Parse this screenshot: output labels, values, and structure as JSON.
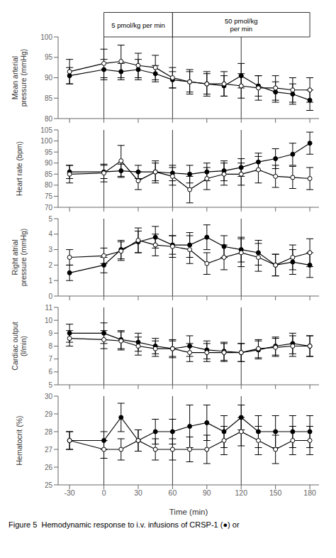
{
  "chart_data": [
    {
      "type": "line",
      "y_label": "Mean arterial\npressure (mmHg)",
      "x": [
        -30,
        0,
        15,
        30,
        45,
        60,
        75,
        90,
        105,
        120,
        135,
        150,
        165,
        180
      ],
      "series": [
        {
          "color": "#000000",
          "marker": "filled_circle",
          "values": [
            90.5,
            92.0,
            91.5,
            92.0,
            91.0,
            89.5,
            89.0,
            88.5,
            88.0,
            90.5,
            88.0,
            86.5,
            86.0,
            84.5
          ],
          "errors": [
            2.0,
            2.5,
            2.0,
            2.5,
            2.0,
            2.0,
            2.5,
            2.5,
            2.5,
            3.0,
            2.5,
            2.5,
            2.5,
            2.5
          ]
        },
        {
          "color": "#000000",
          "marker": "open_circle",
          "values": [
            91.5,
            93.5,
            94.0,
            93.0,
            92.5,
            90.0,
            89.0,
            88.5,
            88.5,
            88.0,
            87.5,
            87.5,
            87.0,
            87.0
          ],
          "errors": [
            3.0,
            3.5,
            4.0,
            3.0,
            3.0,
            2.5,
            3.0,
            3.0,
            3.0,
            3.0,
            3.0,
            3.0,
            3.0,
            3.0
          ]
        }
      ],
      "xlim": [
        -40,
        188
      ],
      "xticks": [
        -30,
        0,
        30,
        60,
        90,
        120,
        150,
        180
      ],
      "ylim": [
        80,
        100
      ],
      "yticks": [
        80,
        85,
        90,
        95,
        100
      ],
      "tick_labels": "y",
      "grid": false,
      "annotations": [
        {
          "kind": "vline",
          "x": 0
        },
        {
          "kind": "vline",
          "x": 60
        },
        {
          "kind": "vline",
          "x": 120
        },
        {
          "kind": "box",
          "text": "5 pmol/kg per min",
          "x_range": [
            0,
            60
          ]
        },
        {
          "kind": "box",
          "text": "50 pmol/kg\nper min",
          "x_range": [
            60,
            180
          ]
        }
      ]
    },
    {
      "type": "line",
      "y_label": "Heart rate (bpm)",
      "x": [
        -30,
        0,
        15,
        30,
        45,
        60,
        75,
        90,
        105,
        120,
        135,
        150,
        165,
        180
      ],
      "series": [
        {
          "color": "#000000",
          "marker": "filled_circle",
          "values": [
            86.0,
            86.0,
            86.5,
            86.0,
            86.0,
            85.5,
            85.0,
            86.0,
            86.5,
            88.0,
            90.5,
            92.0,
            94.0,
            99.0
          ],
          "errors": [
            3.0,
            3.0,
            3.0,
            3.0,
            4.0,
            3.5,
            4.0,
            4.0,
            4.5,
            4.0,
            4.0,
            4.5,
            5.0,
            5.0
          ]
        },
        {
          "color": "#000000",
          "marker": "open_circle",
          "values": [
            85.0,
            85.5,
            91.0,
            82.0,
            86.0,
            84.0,
            78.0,
            83.0,
            85.0,
            85.0,
            87.0,
            84.0,
            83.5,
            83.0
          ],
          "errors": [
            4.0,
            4.0,
            7.0,
            4.0,
            5.0,
            4.0,
            6.0,
            5.0,
            5.0,
            5.0,
            6.0,
            5.0,
            5.0,
            5.0
          ]
        }
      ],
      "xlim": [
        -40,
        188
      ],
      "xticks": [
        -30,
        0,
        30,
        60,
        90,
        120,
        150,
        180
      ],
      "ylim": [
        70,
        105
      ],
      "yticks": [
        70,
        75,
        80,
        85,
        90,
        95,
        100,
        105
      ],
      "tick_labels": "y",
      "grid": false,
      "annotations": [
        {
          "kind": "vline",
          "x": 0
        },
        {
          "kind": "vline",
          "x": 60
        },
        {
          "kind": "vline",
          "x": 120
        }
      ]
    },
    {
      "type": "line",
      "y_label": "Right atrial\npressure (mmHg)",
      "x": [
        -30,
        0,
        15,
        30,
        45,
        60,
        75,
        90,
        105,
        120,
        135,
        150,
        165,
        180
      ],
      "series": [
        {
          "color": "#000000",
          "marker": "filled_circle",
          "values": [
            1.5,
            2.0,
            3.0,
            3.5,
            3.8,
            3.3,
            3.3,
            3.8,
            3.2,
            3.0,
            2.8,
            2.0,
            2.2,
            2.0
          ],
          "errors": [
            0.5,
            0.5,
            0.6,
            0.7,
            0.7,
            0.6,
            0.8,
            0.8,
            0.7,
            0.8,
            0.8,
            0.7,
            0.8,
            0.8
          ]
        },
        {
          "color": "#000000",
          "marker": "open_circle",
          "values": [
            2.5,
            2.6,
            2.9,
            3.6,
            3.3,
            3.2,
            3.0,
            2.1,
            2.5,
            2.8,
            2.5,
            2.0,
            2.5,
            2.8
          ],
          "errors": [
            0.5,
            0.5,
            0.6,
            0.8,
            0.7,
            0.7,
            0.9,
            0.7,
            0.8,
            0.9,
            0.9,
            0.7,
            0.8,
            0.9
          ]
        }
      ],
      "xlim": [
        -40,
        188
      ],
      "xticks": [
        -30,
        0,
        30,
        60,
        90,
        120,
        150,
        180
      ],
      "ylim": [
        0,
        5
      ],
      "yticks": [
        0,
        1,
        2,
        3,
        4,
        5
      ],
      "tick_labels": "y",
      "grid": false,
      "annotations": [
        {
          "kind": "vline",
          "x": 0
        },
        {
          "kind": "vline",
          "x": 60
        },
        {
          "kind": "vline",
          "x": 120
        }
      ]
    },
    {
      "type": "line",
      "y_label": "Cardiac output\n(l/min)",
      "x": [
        -30,
        0,
        15,
        30,
        45,
        60,
        75,
        90,
        105,
        120,
        135,
        150,
        165,
        180
      ],
      "series": [
        {
          "color": "#000000",
          "marker": "filled_circle",
          "values": [
            9.0,
            9.0,
            8.5,
            8.3,
            8.0,
            7.8,
            8.0,
            7.7,
            7.6,
            7.5,
            7.7,
            8.0,
            8.2,
            8.0
          ],
          "errors": [
            0.7,
            0.8,
            0.7,
            0.7,
            0.6,
            0.6,
            0.8,
            0.7,
            0.7,
            0.7,
            0.7,
            0.7,
            0.8,
            0.8
          ]
        },
        {
          "color": "#000000",
          "marker": "open_circle",
          "values": [
            8.6,
            8.5,
            8.4,
            8.0,
            7.8,
            7.8,
            7.5,
            7.5,
            7.5,
            7.5,
            7.8,
            7.9,
            8.0,
            8.0
          ],
          "errors": [
            0.6,
            0.7,
            0.7,
            0.7,
            0.6,
            0.7,
            0.7,
            0.7,
            0.7,
            0.7,
            0.7,
            0.7,
            0.8,
            0.8
          ]
        }
      ],
      "xlim": [
        -40,
        188
      ],
      "xticks": [
        -30,
        0,
        30,
        60,
        90,
        120,
        150,
        180
      ],
      "ylim": [
        5,
        11
      ],
      "yticks": [
        5,
        6,
        7,
        8,
        9,
        10,
        11
      ],
      "tick_labels": "y",
      "grid": false,
      "annotations": [
        {
          "kind": "vline",
          "x": 0
        },
        {
          "kind": "vline",
          "x": 60
        },
        {
          "kind": "vline",
          "x": 120
        }
      ]
    },
    {
      "type": "line",
      "y_label": "Hematocrit (%)",
      "x_label": "Time (min)",
      "x": [
        -30,
        0,
        15,
        30,
        45,
        60,
        75,
        90,
        105,
        120,
        135,
        150,
        165,
        180
      ],
      "series": [
        {
          "color": "#000000",
          "marker": "filled_circle",
          "values": [
            27.5,
            27.5,
            28.8,
            27.5,
            28.0,
            28.0,
            28.3,
            28.5,
            28.0,
            28.8,
            28.0,
            28.0,
            28.0,
            28.0
          ],
          "errors": [
            0.5,
            0.5,
            0.8,
            0.6,
            0.7,
            0.7,
            1.2,
            1.0,
            0.9,
            0.7,
            0.9,
            0.9,
            0.9,
            0.9
          ]
        },
        {
          "color": "#000000",
          "marker": "open_circle",
          "values": [
            27.5,
            27.0,
            27.0,
            27.5,
            27.0,
            27.0,
            27.0,
            27.0,
            27.5,
            28.0,
            27.5,
            27.0,
            27.5,
            27.5
          ],
          "errors": [
            0.5,
            0.5,
            0.6,
            0.6,
            0.6,
            0.6,
            0.7,
            0.8,
            0.8,
            0.8,
            0.8,
            0.8,
            0.8,
            0.8
          ]
        }
      ],
      "xlim": [
        -40,
        188
      ],
      "xticks": [
        -30,
        0,
        30,
        60,
        90,
        120,
        150,
        180
      ],
      "ylim": [
        25,
        30
      ],
      "yticks": [
        25,
        26,
        27,
        28,
        29,
        30
      ],
      "grid": false,
      "annotations": [
        {
          "kind": "vline",
          "x": 0
        },
        {
          "kind": "vline",
          "x": 60
        },
        {
          "kind": "vline",
          "x": 120
        }
      ]
    }
  ],
  "caption": "Figure 5  Hemodynamic response to i.v. infusions of CRSP-1 (●) or"
}
